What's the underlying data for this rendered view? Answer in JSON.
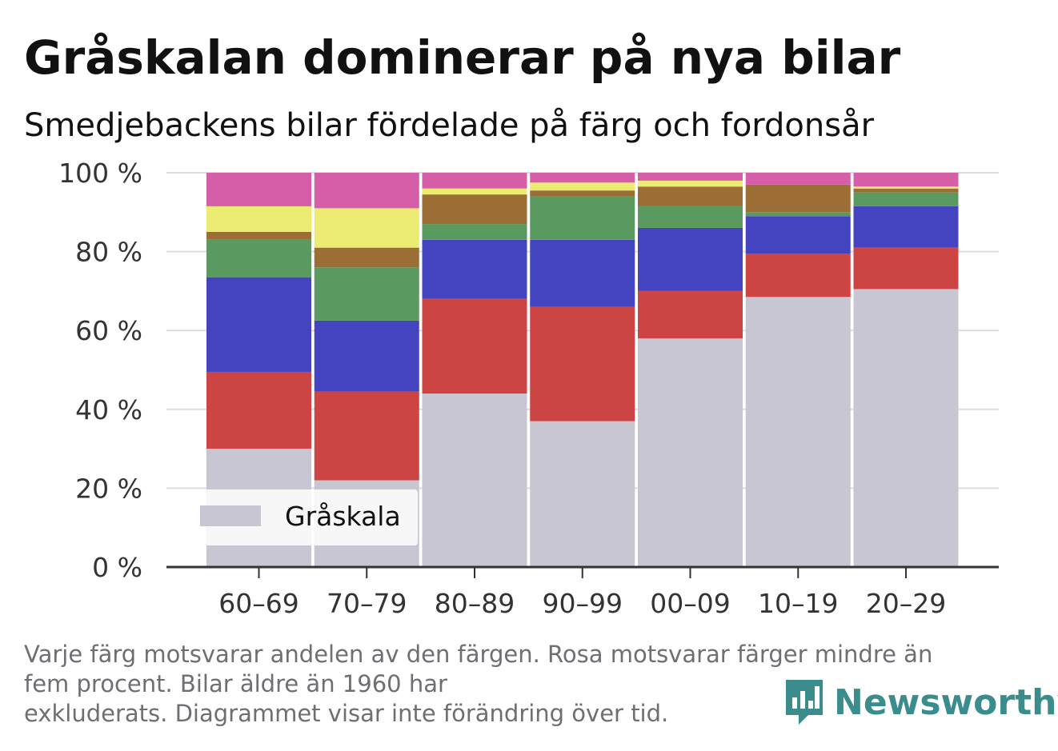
{
  "title": "Gråskalan dominerar på nya bilar",
  "subtitle": "Smedjebackens bilar fördelade på färg och fordonsår",
  "footnote_line1": "Varje färg motsvarar andelen av den färgen. Rosa motsvarar färger mindre än",
  "footnote_line2": "fem procent. Bilar äldre än 1960 har",
  "footnote_line3": "exkluderats. Diagrammet visar inte förändring över tid.",
  "brand": {
    "name": "Newsworthy",
    "icon": "newsworthy-logo-icon",
    "color": "#3b8c8c"
  },
  "chart_data": {
    "type": "bar",
    "stacked": true,
    "categories": [
      "60–69",
      "70–79",
      "80–89",
      "90–99",
      "00–09",
      "10–19",
      "20–29"
    ],
    "yticks": [
      "0 %",
      "20 %",
      "40 %",
      "60 %",
      "80 %",
      "100 %"
    ],
    "ylim": [
      0,
      100
    ],
    "grid": true,
    "legend": {
      "position": "bottom-left",
      "entries": [
        "Gråskala"
      ]
    },
    "series": [
      {
        "name": "Gråskala",
        "color": "#c8c6d2",
        "values": [
          30,
          22,
          44,
          37,
          58,
          68.5,
          70.5
        ]
      },
      {
        "color": "#cc4444",
        "values": [
          19.5,
          22.5,
          24,
          29,
          12,
          11,
          10.5
        ]
      },
      {
        "color": "#4444c0",
        "values": [
          24,
          18,
          15,
          17,
          16,
          9.5,
          10.5
        ]
      },
      {
        "color": "#5a9a60",
        "values": [
          9.5,
          13.5,
          4,
          11,
          5.5,
          1,
          3.5
        ]
      },
      {
        "color": "#9a6e35",
        "values": [
          2,
          5,
          7.5,
          1.5,
          5,
          7,
          1
        ]
      },
      {
        "color": "#ecec74",
        "values": [
          6.5,
          10,
          1.5,
          2,
          1.5,
          0,
          0.5
        ]
      },
      {
        "color": "#d65ea8",
        "values": [
          8.5,
          9,
          4,
          2.5,
          2,
          3,
          3.5
        ]
      }
    ]
  }
}
